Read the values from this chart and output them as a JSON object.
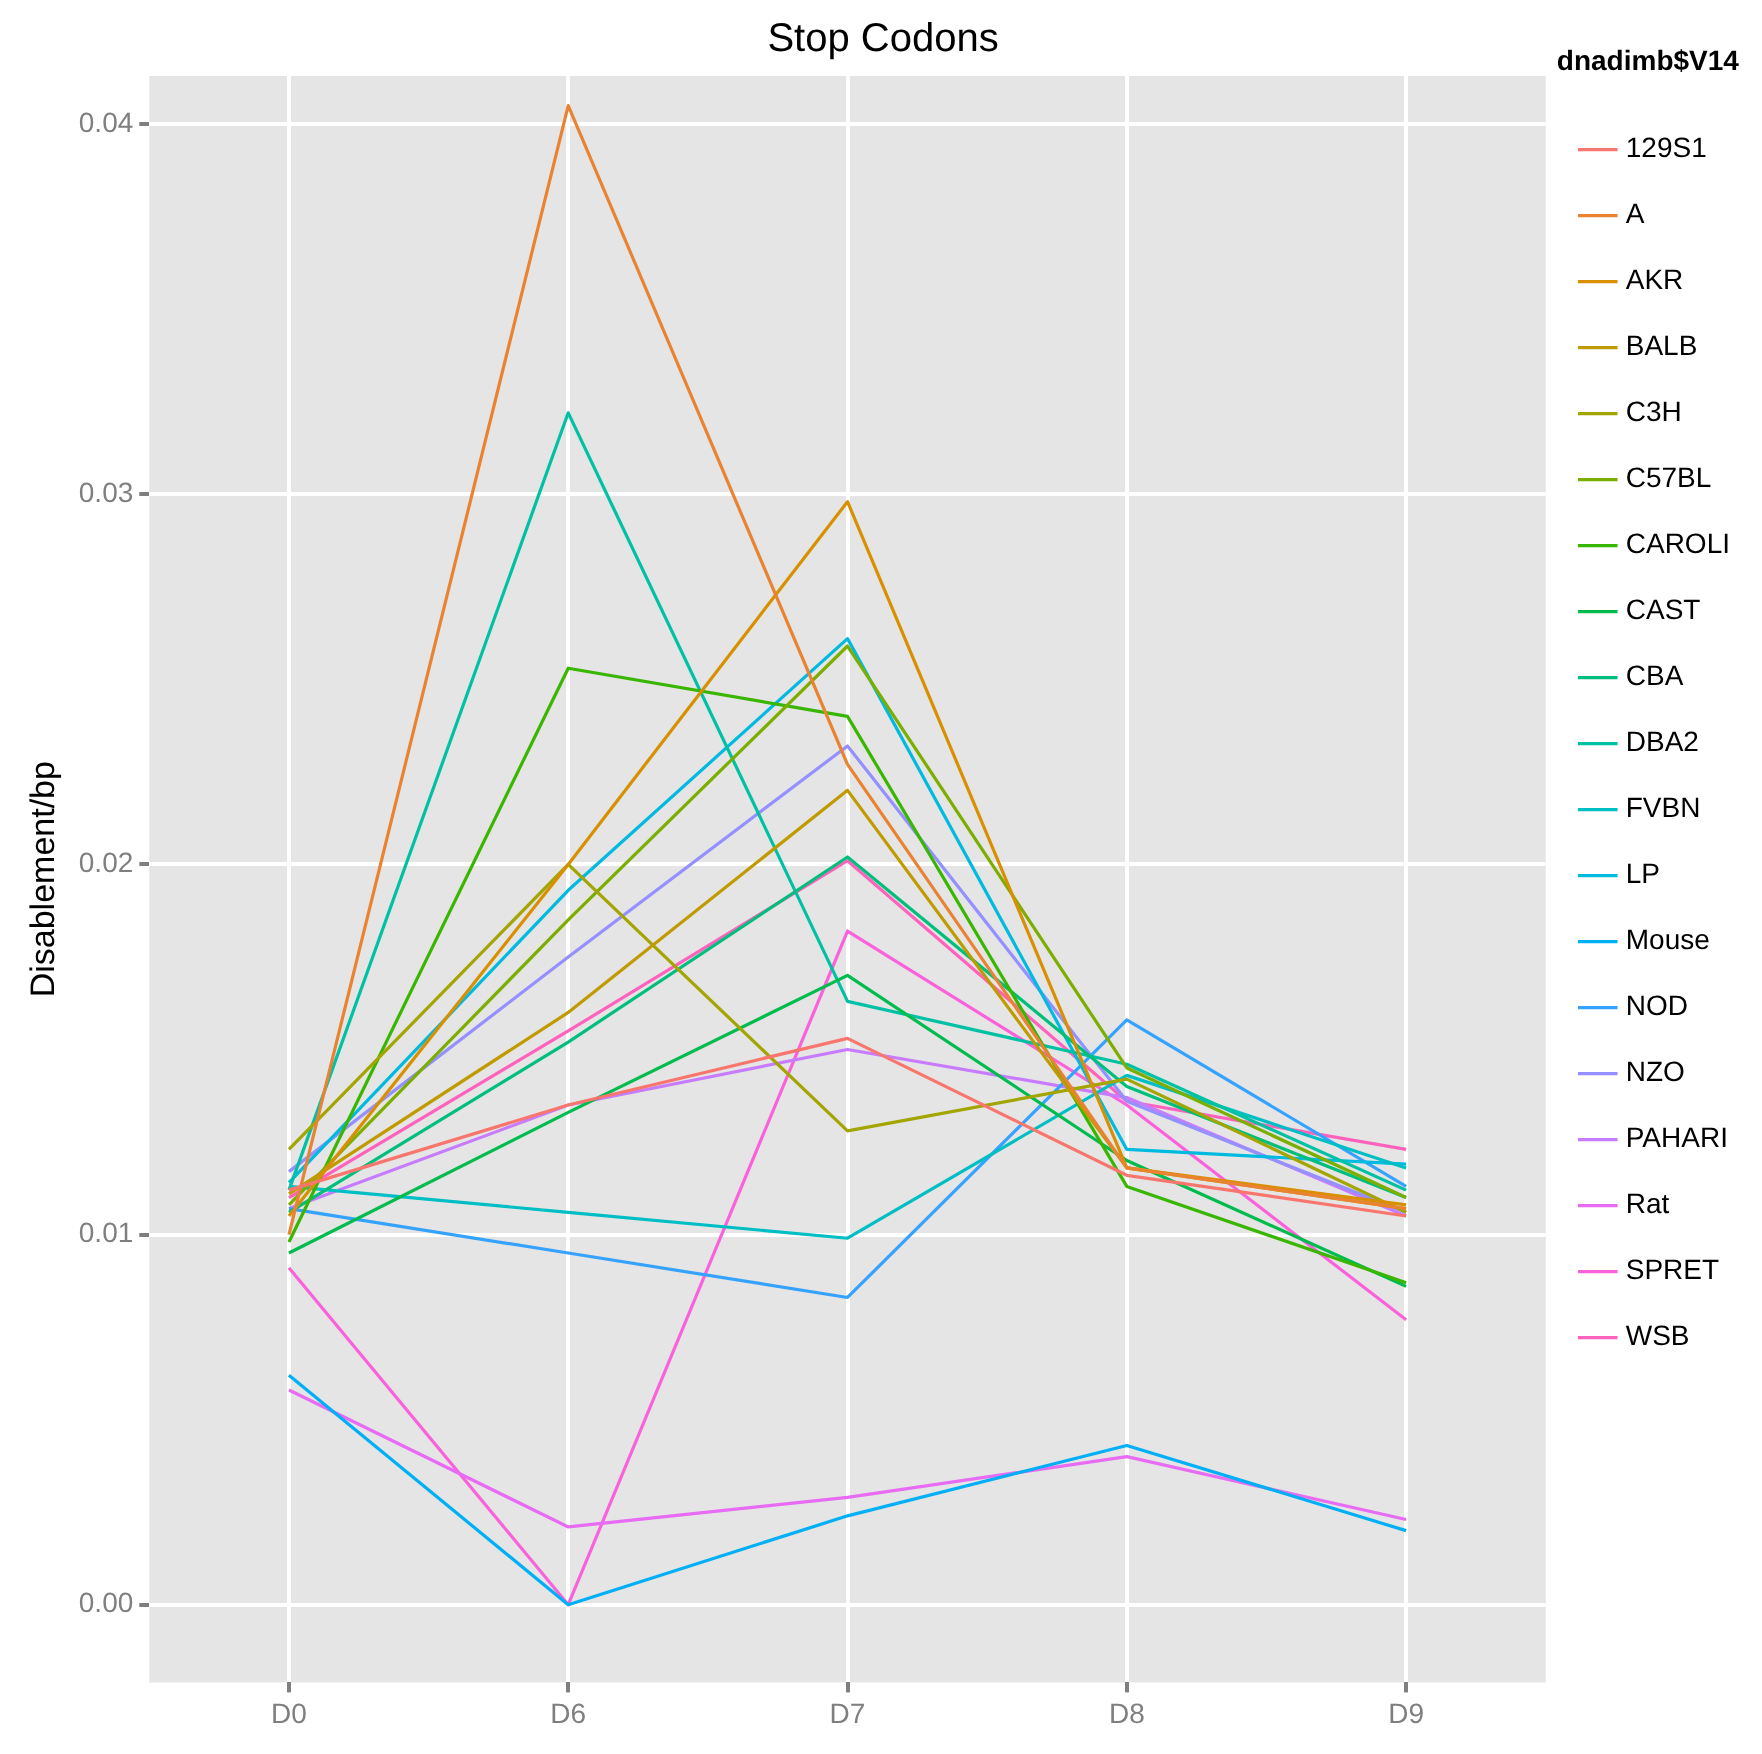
{
  "chart_data": {
    "type": "line",
    "title": "Stop Codons",
    "ylabel": "Disablement/bp",
    "legend_title": "dnadimb$V14",
    "legend": "right",
    "grid": true,
    "marker": "none",
    "categories": [
      "D0",
      "D6",
      "D7",
      "D8",
      "D9"
    ],
    "ylim": [
      -0.0021,
      0.0413
    ],
    "yticks": [
      {
        "value": 0,
        "label": "0.00"
      },
      {
        "value": 0.01,
        "label": "0.01"
      },
      {
        "value": 0.02,
        "label": "0.02"
      },
      {
        "value": 0.03,
        "label": "0.03"
      },
      {
        "value": 0.04,
        "label": "0.04"
      }
    ],
    "series": [
      {
        "name": "129S1",
        "color": "#f8766d",
        "values": [
          0.0112,
          0.0135,
          0.0153,
          0.0116,
          0.0105
        ]
      },
      {
        "name": "A",
        "color": "#ea8331",
        "values": [
          0.01,
          0.0405,
          0.0227,
          0.0118,
          0.0107
        ]
      },
      {
        "name": "AKR",
        "color": "#d89000",
        "values": [
          0.0105,
          0.02,
          0.0298,
          0.0118,
          0.0108
        ]
      },
      {
        "name": "BALB",
        "color": "#c09b00",
        "values": [
          0.0111,
          0.016,
          0.022,
          0.0118,
          0.0107
        ]
      },
      {
        "name": "C3H",
        "color": "#a3a500",
        "values": [
          0.0123,
          0.02,
          0.0128,
          0.0142,
          0.0106
        ]
      },
      {
        "name": "C57BL",
        "color": "#7cae00",
        "values": [
          0.0108,
          0.0185,
          0.0259,
          0.0145,
          0.011
        ]
      },
      {
        "name": "CAROLI",
        "color": "#39b600",
        "values": [
          0.0098,
          0.0253,
          0.024,
          0.0113,
          0.0087
        ]
      },
      {
        "name": "CAST",
        "color": "#00bb4e",
        "values": [
          0.0095,
          0.0133,
          0.017,
          0.012,
          0.0086
        ]
      },
      {
        "name": "CBA",
        "color": "#00bf7d",
        "values": [
          0.0106,
          0.0152,
          0.0202,
          0.014,
          0.011
        ]
      },
      {
        "name": "DBA2",
        "color": "#00c1a3",
        "values": [
          0.0112,
          0.0322,
          0.0163,
          0.0146,
          0.0112
        ]
      },
      {
        "name": "FVBN",
        "color": "#00bfc4",
        "values": [
          0.0113,
          0.0106,
          0.0099,
          0.0143,
          0.0118
        ]
      },
      {
        "name": "LP",
        "color": "#00bae0",
        "values": [
          0.0114,
          0.0193,
          0.0261,
          0.0123,
          0.0119
        ]
      },
      {
        "name": "Mouse",
        "color": "#00b0f6",
        "values": [
          0.0062,
          0.0,
          0.0024,
          0.0043,
          0.002
        ]
      },
      {
        "name": "NOD",
        "color": "#35a2ff",
        "values": [
          0.0107,
          0.0095,
          0.0083,
          0.0158,
          0.0113
        ]
      },
      {
        "name": "NZO",
        "color": "#9590ff",
        "values": [
          0.0117,
          0.0175,
          0.0232,
          0.0136,
          0.0106
        ]
      },
      {
        "name": "PAHARI",
        "color": "#c77cff",
        "values": [
          0.0107,
          0.0135,
          0.015,
          0.0137,
          0.0105
        ]
      },
      {
        "name": "Rat",
        "color": "#e76bf3",
        "values": [
          0.0058,
          0.0021,
          0.0029,
          0.004,
          0.0023
        ]
      },
      {
        "name": "SPRET",
        "color": "#fa62db",
        "values": [
          0.0091,
          0.0,
          0.0182,
          0.0135,
          0.0077
        ]
      },
      {
        "name": "WSB",
        "color": "#ff62bc",
        "values": [
          0.011,
          0.0155,
          0.0201,
          0.0136,
          0.0123
        ]
      }
    ]
  }
}
